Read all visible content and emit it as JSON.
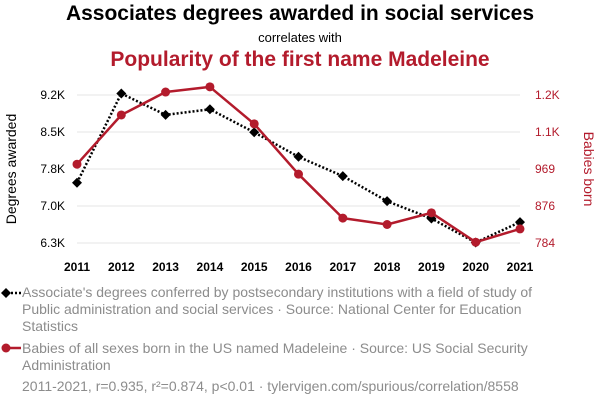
{
  "header": {
    "title": "Associates degrees awarded in social services",
    "subtitle": "correlates with",
    "title2": "Popularity of the first name Madeleine"
  },
  "chart_data": {
    "type": "line",
    "x": [
      2011,
      2012,
      2013,
      2014,
      2015,
      2016,
      2017,
      2018,
      2019,
      2020,
      2021
    ],
    "x_tick_labels": [
      "2011",
      "2012",
      "2013",
      "2014",
      "2015",
      "2016",
      "2017",
      "2018",
      "2019",
      "2020",
      "2021"
    ],
    "y_left": {
      "label": "Degrees awarded",
      "ticks": [
        6300,
        7000,
        7800,
        8500,
        9200
      ],
      "tick_labels": [
        "6.3K",
        "7.0K",
        "7.8K",
        "8.5K",
        "9.2K"
      ],
      "range": [
        6300,
        9200
      ]
    },
    "y_right": {
      "label": "Babies born",
      "ticks": [
        784,
        876,
        969,
        1100,
        1200
      ],
      "tick_labels": [
        "784",
        "876",
        "969",
        "1.1K",
        "1.2K"
      ]
    },
    "series": [
      {
        "name": "Associate's degrees conferred by postsecondary institutions with a field of study of Public administration and social services · Source: National Center for Education Statistics",
        "axis": "left",
        "color": "#000000",
        "marker": "diamond",
        "style": "dotted",
        "values": [
          7480,
          9230,
          8810,
          8920,
          8470,
          7990,
          7610,
          7120,
          6780,
          6310,
          6710
        ]
      },
      {
        "name": "Babies of all sexes born in the US named Madeleine · Source: US Social Security Administration",
        "axis": "right",
        "color": "#b31b2c",
        "marker": "circle",
        "style": "solid",
        "values": [
          986,
          1146,
          1208,
          1222,
          1122,
          956,
          846,
          830,
          859,
          786,
          819
        ]
      }
    ],
    "grid": true,
    "legend_position": "bottom"
  },
  "footer": "2011-2021, r=0.935, r²=0.874, p<0.01 · tylervigen.com/spurious/correlation/8558"
}
